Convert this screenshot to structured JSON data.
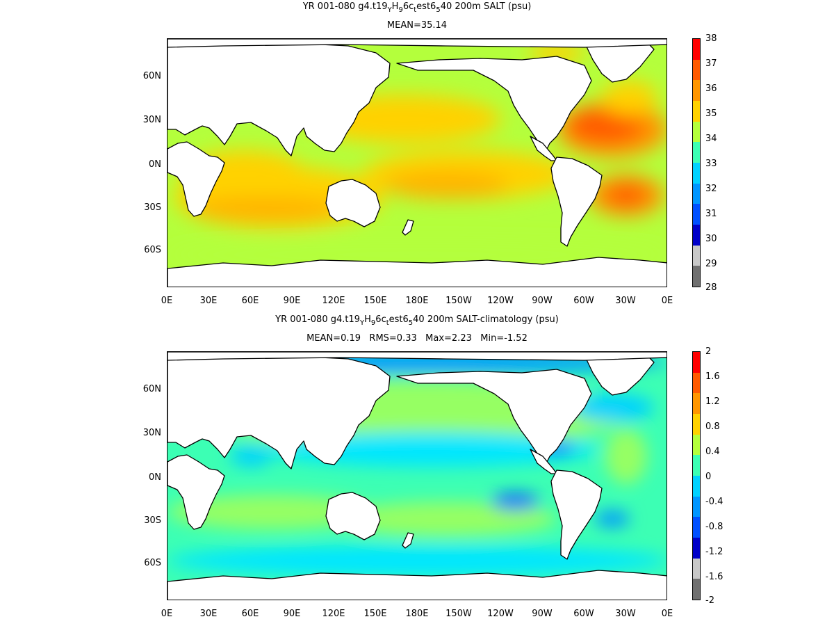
{
  "panels": [
    {
      "title_parts": [
        "YR 001-080 g4.t19",
        "Y",
        "H",
        "9",
        "6c",
        "t",
        "est6",
        "5",
        "40 200m SALT (psu)"
      ],
      "subtitle": "MEAN=35.14",
      "colorbar_labels": [
        "38",
        "37",
        "36",
        "35",
        "34",
        "33",
        "32",
        "31",
        "30",
        "29",
        "28"
      ]
    },
    {
      "title_parts": [
        "YR 001-080 g4.t19",
        "Y",
        "H",
        "9",
        "6c",
        "t",
        "est6",
        "5",
        "40 200m SALT-climatology (psu)"
      ],
      "subtitle": "MEAN=0.19   RMS=0.33   Max=2.23   Min=-1.52",
      "colorbar_labels": [
        "2",
        "1.6",
        "1.2",
        "0.8",
        "0.4",
        "0",
        "-0.4",
        "-0.8",
        "-1.2",
        "-1.6",
        "-2"
      ]
    }
  ],
  "lat_labels": [
    "60N",
    "30N",
    "0N",
    "30S",
    "60S"
  ],
  "lon_labels": [
    "0E",
    "30E",
    "60E",
    "90E",
    "120E",
    "150E",
    "180E",
    "150W",
    "120W",
    "90W",
    "60W",
    "30W",
    "0E"
  ],
  "colorbar_colors": [
    "#ff0000",
    "#ff5a00",
    "#ff9600",
    "#ffd200",
    "#b4ff3c",
    "#3cffb4",
    "#00d2ff",
    "#0096ff",
    "#0050ff",
    "#0000c8",
    "#c8c8c8",
    "#707070"
  ]
}
